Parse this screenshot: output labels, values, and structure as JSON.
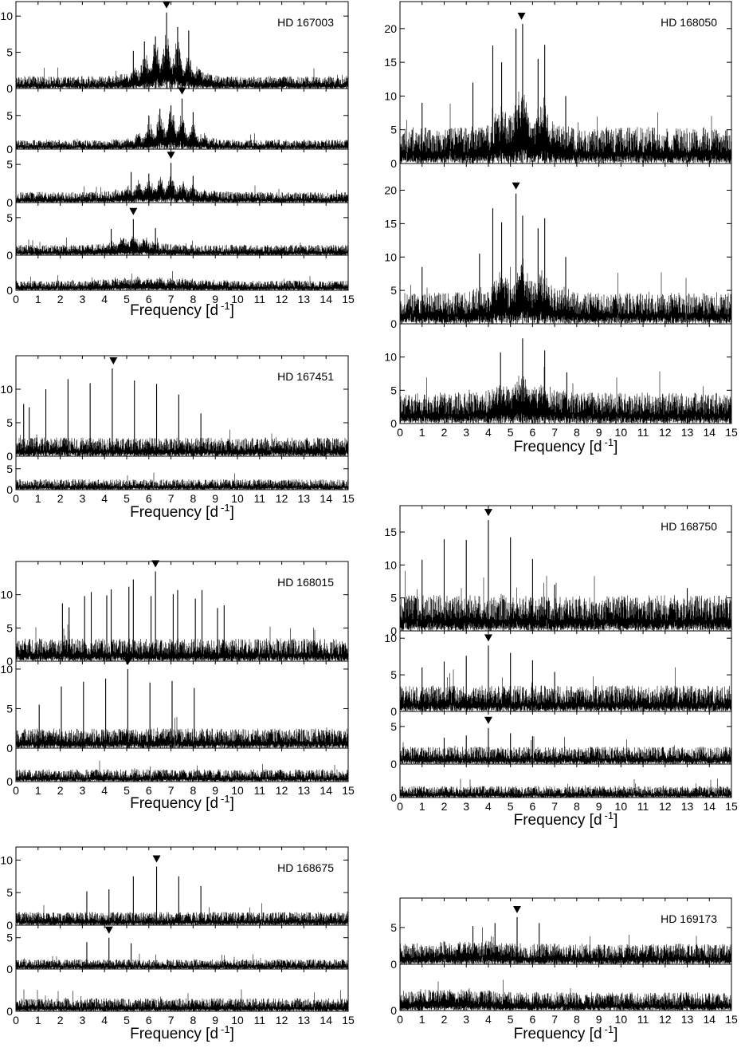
{
  "figure": {
    "x_axis": {
      "label": "Frequency [d",
      "label_exponent": "-1",
      "label_close": "]",
      "ticks": [
        "0",
        "1",
        "2",
        "3",
        "4",
        "5",
        "6",
        "7",
        "8",
        "9",
        "10",
        "11",
        "12",
        "13",
        "14",
        "15"
      ],
      "range": [
        0,
        15
      ]
    }
  },
  "chart_data": [
    {
      "type": "line",
      "star": "HD 167003",
      "panels": [
        {
          "ylim": [
            0,
            12
          ],
          "yticks": [
            0,
            5,
            10
          ],
          "noise": 1.1,
          "marker": 6.8,
          "envelope": {
            "center": 6.8,
            "width": 1.3,
            "amp": 5.0,
            "period": 0.5
          },
          "peaks": [
            {
              "x": 6.8,
              "y": 10.5
            },
            {
              "x": 7.3,
              "y": 8.5
            },
            {
              "x": 7.8,
              "y": 8.0
            },
            {
              "x": 6.3,
              "y": 7.2
            },
            {
              "x": 5.8,
              "y": 6.5
            },
            {
              "x": 5.3,
              "y": 5.2
            }
          ]
        },
        {
          "ylim": [
            0,
            9
          ],
          "yticks": [
            0,
            5
          ],
          "noise": 0.9,
          "marker": 7.5,
          "envelope": {
            "center": 7.0,
            "width": 1.2,
            "amp": 4.0,
            "period": 0.5
          },
          "peaks": [
            {
              "x": 7.5,
              "y": 7.5
            },
            {
              "x": 7.0,
              "y": 6.5
            },
            {
              "x": 6.5,
              "y": 6.0
            },
            {
              "x": 8.0,
              "y": 5.5
            },
            {
              "x": 6.0,
              "y": 5.0
            }
          ]
        },
        {
          "ylim": [
            0,
            7
          ],
          "yticks": [
            0,
            5
          ],
          "noise": 0.9,
          "marker": 7.0,
          "envelope": {
            "center": 6.5,
            "width": 1.6,
            "amp": 1.8,
            "period": 0.5
          },
          "peaks": [
            {
              "x": 7.0,
              "y": 5.2
            },
            {
              "x": 5.2,
              "y": 4.0
            },
            {
              "x": 6.0,
              "y": 3.8
            },
            {
              "x": 8.0,
              "y": 3.5
            }
          ]
        },
        {
          "ylim": [
            0,
            7
          ],
          "yticks": [
            0,
            5
          ],
          "noise": 0.9,
          "marker": 5.3,
          "envelope": {
            "center": 5.3,
            "width": 1.2,
            "amp": 1.2,
            "period": 0.5
          },
          "peaks": [
            {
              "x": 5.3,
              "y": 4.8
            },
            {
              "x": 4.3,
              "y": 3.5
            },
            {
              "x": 6.3,
              "y": 3.6
            }
          ]
        },
        {
          "ylim": [
            0,
            5
          ],
          "yticks": [
            0
          ],
          "noise": 0.9,
          "marker": null,
          "envelope": {
            "center": 6.0,
            "width": 2.5,
            "amp": 0.5,
            "period": 0.5
          },
          "peaks": []
        }
      ]
    },
    {
      "type": "line",
      "star": "HD 167451",
      "panels": [
        {
          "ylim": [
            0,
            15
          ],
          "yticks": [
            0,
            5,
            10
          ],
          "noise": 1.8,
          "marker": 4.4,
          "envelope": null,
          "peaks": [
            {
              "x": 0.35,
              "y": 7.8
            },
            {
              "x": 0.6,
              "y": 7.3
            },
            {
              "x": 1.35,
              "y": 10.0
            },
            {
              "x": 2.35,
              "y": 11.5
            },
            {
              "x": 3.35,
              "y": 10.9
            },
            {
              "x": 4.35,
              "y": 13.1
            },
            {
              "x": 5.35,
              "y": 11.3
            },
            {
              "x": 6.35,
              "y": 10.8
            },
            {
              "x": 7.35,
              "y": 9.2
            },
            {
              "x": 8.35,
              "y": 6.4
            }
          ]
        },
        {
          "ylim": [
            0,
            8
          ],
          "yticks": [
            0,
            5
          ],
          "noise": 1.6,
          "marker": null,
          "envelope": null,
          "peaks": []
        }
      ]
    },
    {
      "type": "line",
      "star": "HD 168015",
      "panels": [
        {
          "ylim": [
            0,
            15
          ],
          "yticks": [
            0,
            5,
            10
          ],
          "noise": 2.2,
          "marker": 6.3,
          "envelope": null,
          "peaks": [
            {
              "x": 2.1,
              "y": 8.7
            },
            {
              "x": 2.4,
              "y": 8.1
            },
            {
              "x": 3.1,
              "y": 9.8
            },
            {
              "x": 3.4,
              "y": 10.4
            },
            {
              "x": 4.1,
              "y": 9.9
            },
            {
              "x": 4.3,
              "y": 10.8
            },
            {
              "x": 5.1,
              "y": 11.2
            },
            {
              "x": 5.3,
              "y": 12.3
            },
            {
              "x": 6.1,
              "y": 9.8
            },
            {
              "x": 6.3,
              "y": 13.5
            },
            {
              "x": 7.1,
              "y": 10.1
            },
            {
              "x": 7.3,
              "y": 10.7
            },
            {
              "x": 8.1,
              "y": 9.4
            },
            {
              "x": 8.4,
              "y": 10.7
            },
            {
              "x": 9.1,
              "y": 8.0
            },
            {
              "x": 9.4,
              "y": 8.4
            }
          ]
        },
        {
          "ylim": [
            0,
            11
          ],
          "yticks": [
            0,
            5,
            10
          ],
          "noise": 1.6,
          "marker": 5.05,
          "envelope": null,
          "peaks": [
            {
              "x": 1.05,
              "y": 5.5
            },
            {
              "x": 2.05,
              "y": 7.8
            },
            {
              "x": 3.05,
              "y": 8.4
            },
            {
              "x": 4.05,
              "y": 8.8
            },
            {
              "x": 5.05,
              "y": 10.0
            },
            {
              "x": 6.05,
              "y": 8.3
            },
            {
              "x": 7.05,
              "y": 8.5
            },
            {
              "x": 8.05,
              "y": 7.6
            }
          ]
        },
        {
          "ylim": [
            0,
            5
          ],
          "yticks": [
            0
          ],
          "noise": 1.2,
          "marker": null,
          "envelope": null,
          "peaks": []
        }
      ]
    },
    {
      "type": "line",
      "star": "HD 168675",
      "panels": [
        {
          "ylim": [
            0,
            12
          ],
          "yticks": [
            0,
            5,
            10
          ],
          "noise": 1.3,
          "marker": 6.35,
          "envelope": null,
          "peaks": [
            {
              "x": 3.2,
              "y": 5.2
            },
            {
              "x": 4.2,
              "y": 5.5
            },
            {
              "x": 5.3,
              "y": 7.5
            },
            {
              "x": 6.35,
              "y": 9.0
            },
            {
              "x": 7.35,
              "y": 7.5
            },
            {
              "x": 8.35,
              "y": 6.0
            }
          ]
        },
        {
          "ylim": [
            0,
            7
          ],
          "yticks": [
            0,
            5
          ],
          "noise": 1.0,
          "marker": 4.2,
          "envelope": null,
          "peaks": [
            {
              "x": 3.2,
              "y": 4.3
            },
            {
              "x": 4.2,
              "y": 5.0
            },
            {
              "x": 5.2,
              "y": 4.1
            }
          ]
        },
        {
          "ylim": [
            0,
            5
          ],
          "yticks": [
            0
          ],
          "noise": 1.0,
          "marker": null,
          "envelope": null,
          "peaks": []
        }
      ]
    },
    {
      "type": "line",
      "star": "HD 168050",
      "panels": [
        {
          "ylim": [
            0,
            24
          ],
          "yticks": [
            0,
            5,
            10,
            15,
            20
          ],
          "noise": 3.5,
          "marker": 5.5,
          "envelope": {
            "center": 5.5,
            "width": 1.3,
            "amp": 5.0,
            "period": 1.0
          },
          "peaks": [
            {
              "x": 4.2,
              "y": 17.5
            },
            {
              "x": 4.6,
              "y": 15.0
            },
            {
              "x": 5.25,
              "y": 20.0
            },
            {
              "x": 5.55,
              "y": 20.7
            },
            {
              "x": 6.25,
              "y": 15.5
            },
            {
              "x": 6.55,
              "y": 17.6
            },
            {
              "x": 3.3,
              "y": 12.0
            },
            {
              "x": 7.5,
              "y": 10.0
            },
            {
              "x": 1.0,
              "y": 9.0
            }
          ]
        },
        {
          "ylim": [
            0,
            24
          ],
          "yticks": [
            0,
            5,
            10,
            15,
            20
          ],
          "noise": 3.0,
          "marker": 5.25,
          "envelope": {
            "center": 5.5,
            "width": 1.5,
            "amp": 4.0,
            "period": 1.0
          },
          "peaks": [
            {
              "x": 4.2,
              "y": 17.3
            },
            {
              "x": 4.6,
              "y": 15.2
            },
            {
              "x": 5.25,
              "y": 19.5
            },
            {
              "x": 5.55,
              "y": 16.2
            },
            {
              "x": 6.25,
              "y": 14.3
            },
            {
              "x": 6.55,
              "y": 15.8
            },
            {
              "x": 3.6,
              "y": 10.5
            },
            {
              "x": 7.5,
              "y": 10.0
            },
            {
              "x": 1.0,
              "y": 8.5
            }
          ]
        },
        {
          "ylim": [
            0,
            15
          ],
          "yticks": [
            0,
            5,
            10
          ],
          "noise": 3.0,
          "marker": null,
          "envelope": {
            "center": 5.5,
            "width": 1.5,
            "amp": 2.5,
            "period": 1.0
          },
          "peaks": [
            {
              "x": 4.55,
              "y": 10.7
            },
            {
              "x": 5.55,
              "y": 12.8
            },
            {
              "x": 6.55,
              "y": 11.0
            },
            {
              "x": 7.55,
              "y": 7.7
            }
          ]
        }
      ]
    },
    {
      "type": "line",
      "star": "HD 168750",
      "panels": [
        {
          "ylim": [
            0,
            19
          ],
          "yticks": [
            0,
            5,
            10,
            15
          ],
          "noise": 3.5,
          "marker": 4.0,
          "envelope": null,
          "peaks": [
            {
              "x": 1.0,
              "y": 10.8
            },
            {
              "x": 2.0,
              "y": 13.9
            },
            {
              "x": 3.0,
              "y": 13.8
            },
            {
              "x": 4.0,
              "y": 16.8
            },
            {
              "x": 5.0,
              "y": 14.2
            },
            {
              "x": 6.0,
              "y": 10.9
            },
            {
              "x": 7.0,
              "y": 7.0
            },
            {
              "x": 13.0,
              "y": 6.5
            }
          ]
        },
        {
          "ylim": [
            0,
            11
          ],
          "yticks": [
            0,
            5,
            10
          ],
          "noise": 2.3,
          "marker": 4.0,
          "envelope": null,
          "peaks": [
            {
              "x": 1.0,
              "y": 6.0
            },
            {
              "x": 2.0,
              "y": 6.8
            },
            {
              "x": 3.0,
              "y": 7.6
            },
            {
              "x": 4.0,
              "y": 9.0
            },
            {
              "x": 5.0,
              "y": 8.0
            },
            {
              "x": 6.0,
              "y": 7.0
            },
            {
              "x": 7.0,
              "y": 5.4
            }
          ]
        },
        {
          "ylim": [
            0,
            7
          ],
          "yticks": [
            0,
            5
          ],
          "noise": 1.5,
          "marker": 4.0,
          "envelope": null,
          "peaks": [
            {
              "x": 2.0,
              "y": 3.5
            },
            {
              "x": 3.0,
              "y": 3.8
            },
            {
              "x": 4.0,
              "y": 4.8
            },
            {
              "x": 5.0,
              "y": 4.1
            },
            {
              "x": 6.0,
              "y": 3.7
            }
          ]
        },
        {
          "ylim": [
            0,
            5
          ],
          "yticks": [
            0
          ],
          "noise": 1.1,
          "marker": null,
          "envelope": null,
          "peaks": []
        }
      ]
    },
    {
      "type": "line",
      "star": "HD 169173",
      "panels": [
        {
          "ylim": [
            0,
            9
          ],
          "yticks": [
            0,
            5
          ],
          "noise": 1.8,
          "marker": 5.3,
          "envelope": {
            "center": 3.0,
            "width": 2.0,
            "amp": 0.5,
            "period": 1.0
          },
          "peaks": [
            {
              "x": 3.3,
              "y": 5.2
            },
            {
              "x": 4.3,
              "y": 5.6
            },
            {
              "x": 5.3,
              "y": 6.4
            },
            {
              "x": 6.3,
              "y": 5.6
            }
          ]
        },
        {
          "ylim": [
            0,
            7
          ],
          "yticks": [
            0
          ],
          "noise": 1.8,
          "marker": null,
          "envelope": {
            "center": 2.0,
            "width": 2.5,
            "amp": 0.6,
            "period": 1.0
          },
          "peaks": []
        }
      ]
    }
  ]
}
